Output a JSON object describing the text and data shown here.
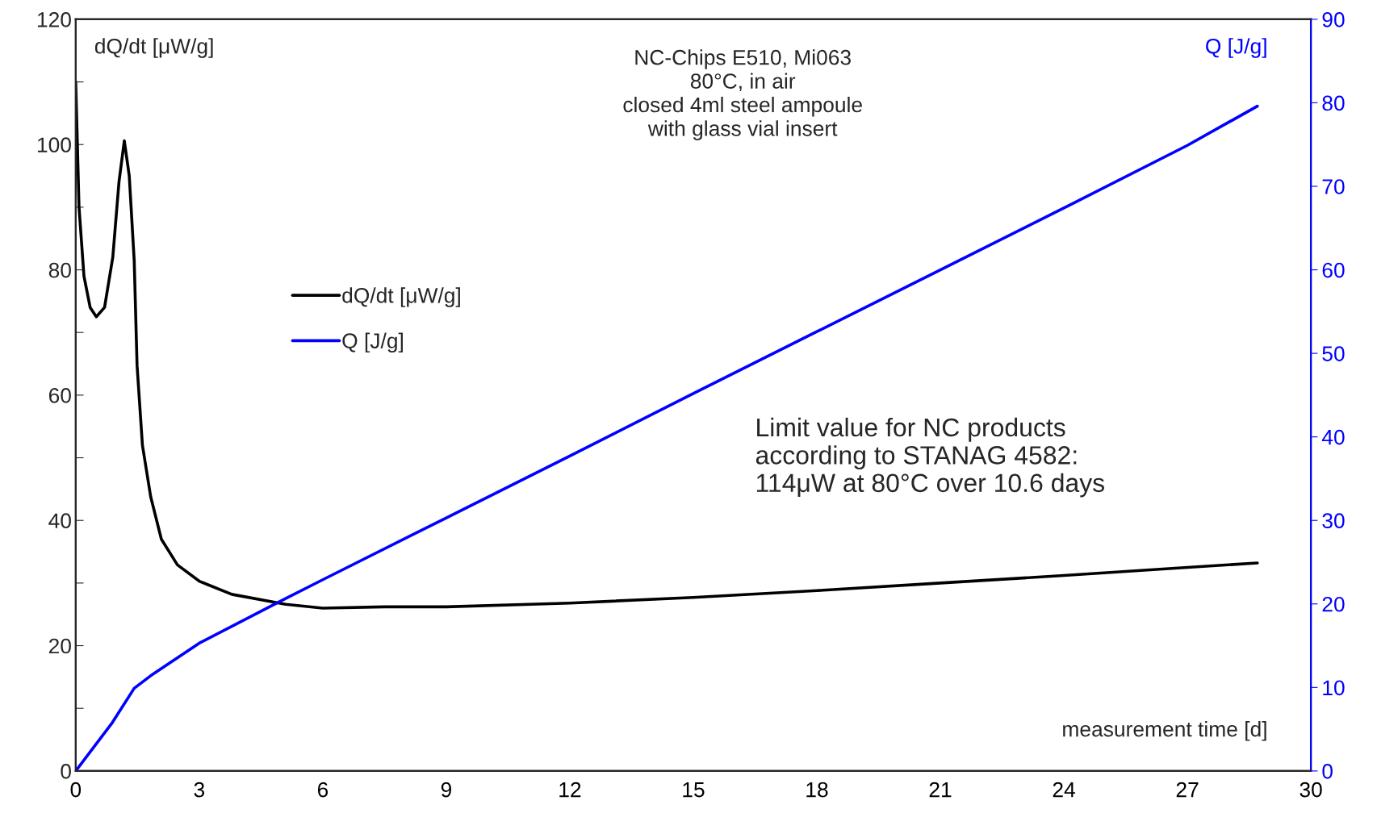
{
  "chart_data": {
    "type": "line",
    "title": "NC-Chips E510, Mi063\n80°C, in air\nclosed 4ml steel ampoule\nwith glass vial insert",
    "xlabel": "measurement time [d]",
    "ylabel": "dQ/dt [μW/g]",
    "y2label": "Q [J/g]",
    "annotations": [
      "Limit value for NC products\naccording to STANAG 4582:\n114μW at 80°C over 10.6 days"
    ],
    "series": [
      {
        "name": "dQ/dt [μW/g]",
        "color": "#000000",
        "x": [
          0,
          0.08,
          0.2,
          0.35,
          0.5,
          0.7,
          0.9,
          1.05,
          1.18,
          1.3,
          1.42,
          1.49,
          1.62,
          1.82,
          2.08,
          2.47,
          3.0,
          3.79,
          5.1,
          6.0,
          7.5,
          9,
          12,
          15,
          18,
          21,
          24,
          27,
          28.7
        ],
        "values": [
          110,
          90,
          79,
          74,
          72.5,
          74,
          82,
          94,
          100.6,
          95,
          81.5,
          64.7,
          52,
          43.8,
          37,
          32.9,
          30.3,
          28.2,
          26.6,
          26.0,
          26.2,
          26.2,
          26.8,
          27.7,
          28.8,
          30,
          31.2,
          32.5,
          33.2
        ]
      },
      {
        "name": "Q [J/g]",
        "color": "#0000ff",
        "axis": "y2",
        "x": [
          0,
          0.89,
          1.42,
          1.82,
          3.0,
          5.0,
          6,
          9,
          12,
          15,
          18,
          21,
          24,
          27,
          28.7
        ],
        "values": [
          0,
          5.8,
          9.9,
          11.4,
          15.3,
          20.4,
          22.9,
          30.3,
          37.7,
          45.2,
          52.6,
          60,
          67.4,
          74.9,
          79.6
        ]
      }
    ],
    "xlim": [
      0,
      30
    ],
    "xticks": [
      0,
      3,
      6,
      9,
      12,
      15,
      18,
      21,
      24,
      27,
      30
    ],
    "ylim": [
      0,
      120
    ],
    "yticks": [
      0,
      {
        "value": 10,
        "label": null
      },
      20,
      {
        "value": 30,
        "label": null
      },
      40,
      {
        "value": 50,
        "label": null
      },
      60,
      {
        "value": 70,
        "label": null
      },
      80,
      {
        "value": 90,
        "label": null
      },
      100,
      {
        "value": 110,
        "label": null
      },
      120
    ],
    "y2lim": [
      0,
      90
    ],
    "y2ticks": [
      0,
      10,
      20,
      30,
      40,
      50,
      60,
      70,
      80,
      90
    ],
    "legend": "center left",
    "grid": false
  }
}
